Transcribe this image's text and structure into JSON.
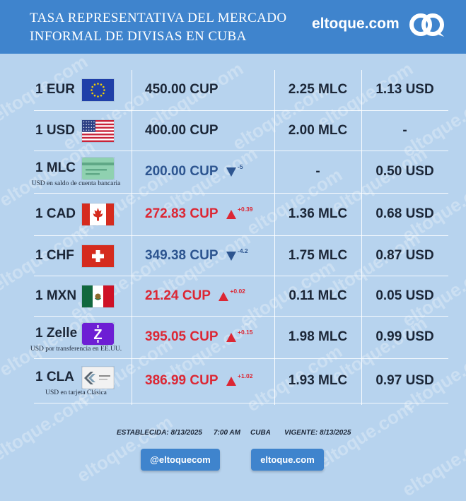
{
  "header": {
    "title_line1": "TASA REPRESENTATIVA DEL MERCADO",
    "title_line2": "INFORMAL DE DIVISAS EN CUBA",
    "brand": "eltoque.com"
  },
  "watermark_text": "eltoque.com",
  "rows": [
    {
      "currency": "1 EUR",
      "flag": "eu-flag",
      "cup": "450.00 CUP",
      "trend": "flat",
      "change": "",
      "mlc": "2.25 MLC",
      "usd": "1.13 USD",
      "note": ""
    },
    {
      "currency": "1 USD",
      "flag": "us-flag",
      "cup": "400.00 CUP",
      "trend": "flat",
      "change": "",
      "mlc": "2.00 MLC",
      "usd": "-",
      "note": ""
    },
    {
      "currency": "1 MLC",
      "flag": "bank-card",
      "cup": "200.00 CUP",
      "trend": "down",
      "change": "-5",
      "mlc": "-",
      "usd": "0.50 USD",
      "note": "USD en saldo de cuenta bancaria"
    },
    {
      "currency": "1 CAD",
      "flag": "canada-flag",
      "cup": "272.83 CUP",
      "trend": "up",
      "change": "+0.39",
      "mlc": "1.36 MLC",
      "usd": "0.68 USD",
      "note": ""
    },
    {
      "currency": "1 CHF",
      "flag": "swiss-flag",
      "cup": "349.38 CUP",
      "trend": "down",
      "change": "-4.2",
      "mlc": "1.75 MLC",
      "usd": "0.87 USD",
      "note": ""
    },
    {
      "currency": "1 MXN",
      "flag": "mexico-flag",
      "cup": "21.24 CUP",
      "trend": "up",
      "change": "+0.02",
      "mlc": "0.11 MLC",
      "usd": "0.05 USD",
      "note": ""
    },
    {
      "currency": "1 Zelle",
      "flag": "zelle-logo",
      "cup": "395.05 CUP",
      "trend": "up",
      "change": "+0.15",
      "mlc": "1.98 MLC",
      "usd": "0.99 USD",
      "note": "USD por transferencia en EE.UU."
    },
    {
      "currency": "1 CLA",
      "flag": "clasica-card",
      "cup": "386.99 CUP",
      "trend": "up",
      "change": "+1.02",
      "mlc": "1.93 MLC",
      "usd": "0.97 USD",
      "note": "USD en tarjeta Clásica"
    }
  ],
  "footer": {
    "established": "ESTABLECIDA: 8/13/2025",
    "time": "7:00 AM",
    "place": "CUBA",
    "valid": "VIGENTE: 8/13/2025"
  },
  "buttons": {
    "social": "@eltoquecom",
    "site": "eltoque.com"
  },
  "colors": {
    "header_bg": "#3f84cd",
    "page_bg": "#b7d3ee",
    "up": "#dc2734",
    "down": "#2d5590"
  }
}
